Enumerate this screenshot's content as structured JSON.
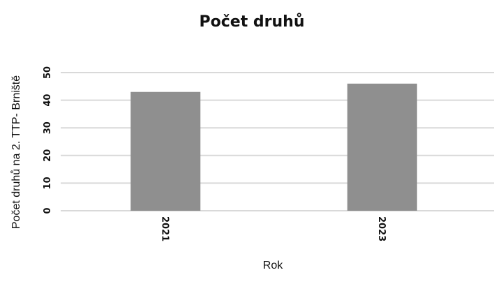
{
  "chart_data": {
    "type": "bar",
    "title": "Počet druhů",
    "xlabel": "Rok",
    "ylabel": "Počet druhů na 2. TTP- Brniště",
    "categories": [
      "2021",
      "2023"
    ],
    "values": [
      43,
      46
    ],
    "ylim": [
      0,
      50
    ],
    "yticks": [
      0,
      10,
      20,
      30,
      40,
      50
    ],
    "grid": true,
    "legend": "none",
    "bar_color": "#8f8f8f",
    "grid_color": "#d9d9d9"
  }
}
